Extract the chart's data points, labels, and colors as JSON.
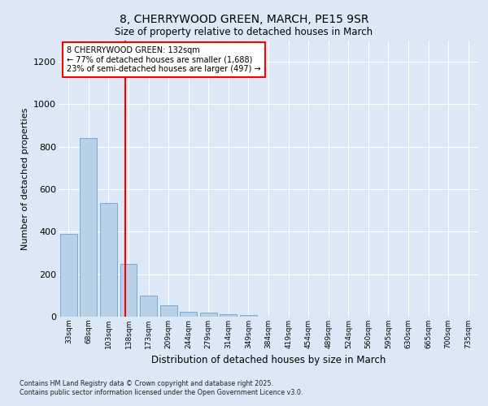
{
  "title_line1": "8, CHERRYWOOD GREEN, MARCH, PE15 9SR",
  "title_line2": "Size of property relative to detached houses in March",
  "xlabel": "Distribution of detached houses by size in March",
  "ylabel": "Number of detached properties",
  "annotation_line1": "8 CHERRYWOOD GREEN: 132sqm",
  "annotation_line2": "← 77% of detached houses are smaller (1,688)",
  "annotation_line3": "23% of semi-detached houses are larger (497) →",
  "bar_color": "#b8d0e8",
  "bar_edge_color": "#7aaad0",
  "ref_line_color": "red",
  "background_color": "#dce8f5",
  "plot_bg_color": "#dce8f5",
  "grid_color": "white",
  "categories": [
    "33sqm",
    "68sqm",
    "103sqm",
    "138sqm",
    "173sqm",
    "209sqm",
    "244sqm",
    "279sqm",
    "314sqm",
    "349sqm",
    "384sqm",
    "419sqm",
    "454sqm",
    "489sqm",
    "524sqm",
    "560sqm",
    "595sqm",
    "630sqm",
    "665sqm",
    "700sqm",
    "735sqm"
  ],
  "values": [
    390,
    840,
    535,
    248,
    100,
    52,
    22,
    18,
    13,
    8,
    0,
    0,
    0,
    0,
    0,
    0,
    0,
    0,
    0,
    0,
    0
  ],
  "ref_line_x": 2.83,
  "ylim": [
    0,
    1300
  ],
  "yticks": [
    0,
    200,
    400,
    600,
    800,
    1000,
    1200
  ],
  "footnote_line1": "Contains HM Land Registry data © Crown copyright and database right 2025.",
  "footnote_line2": "Contains public sector information licensed under the Open Government Licence v3.0."
}
